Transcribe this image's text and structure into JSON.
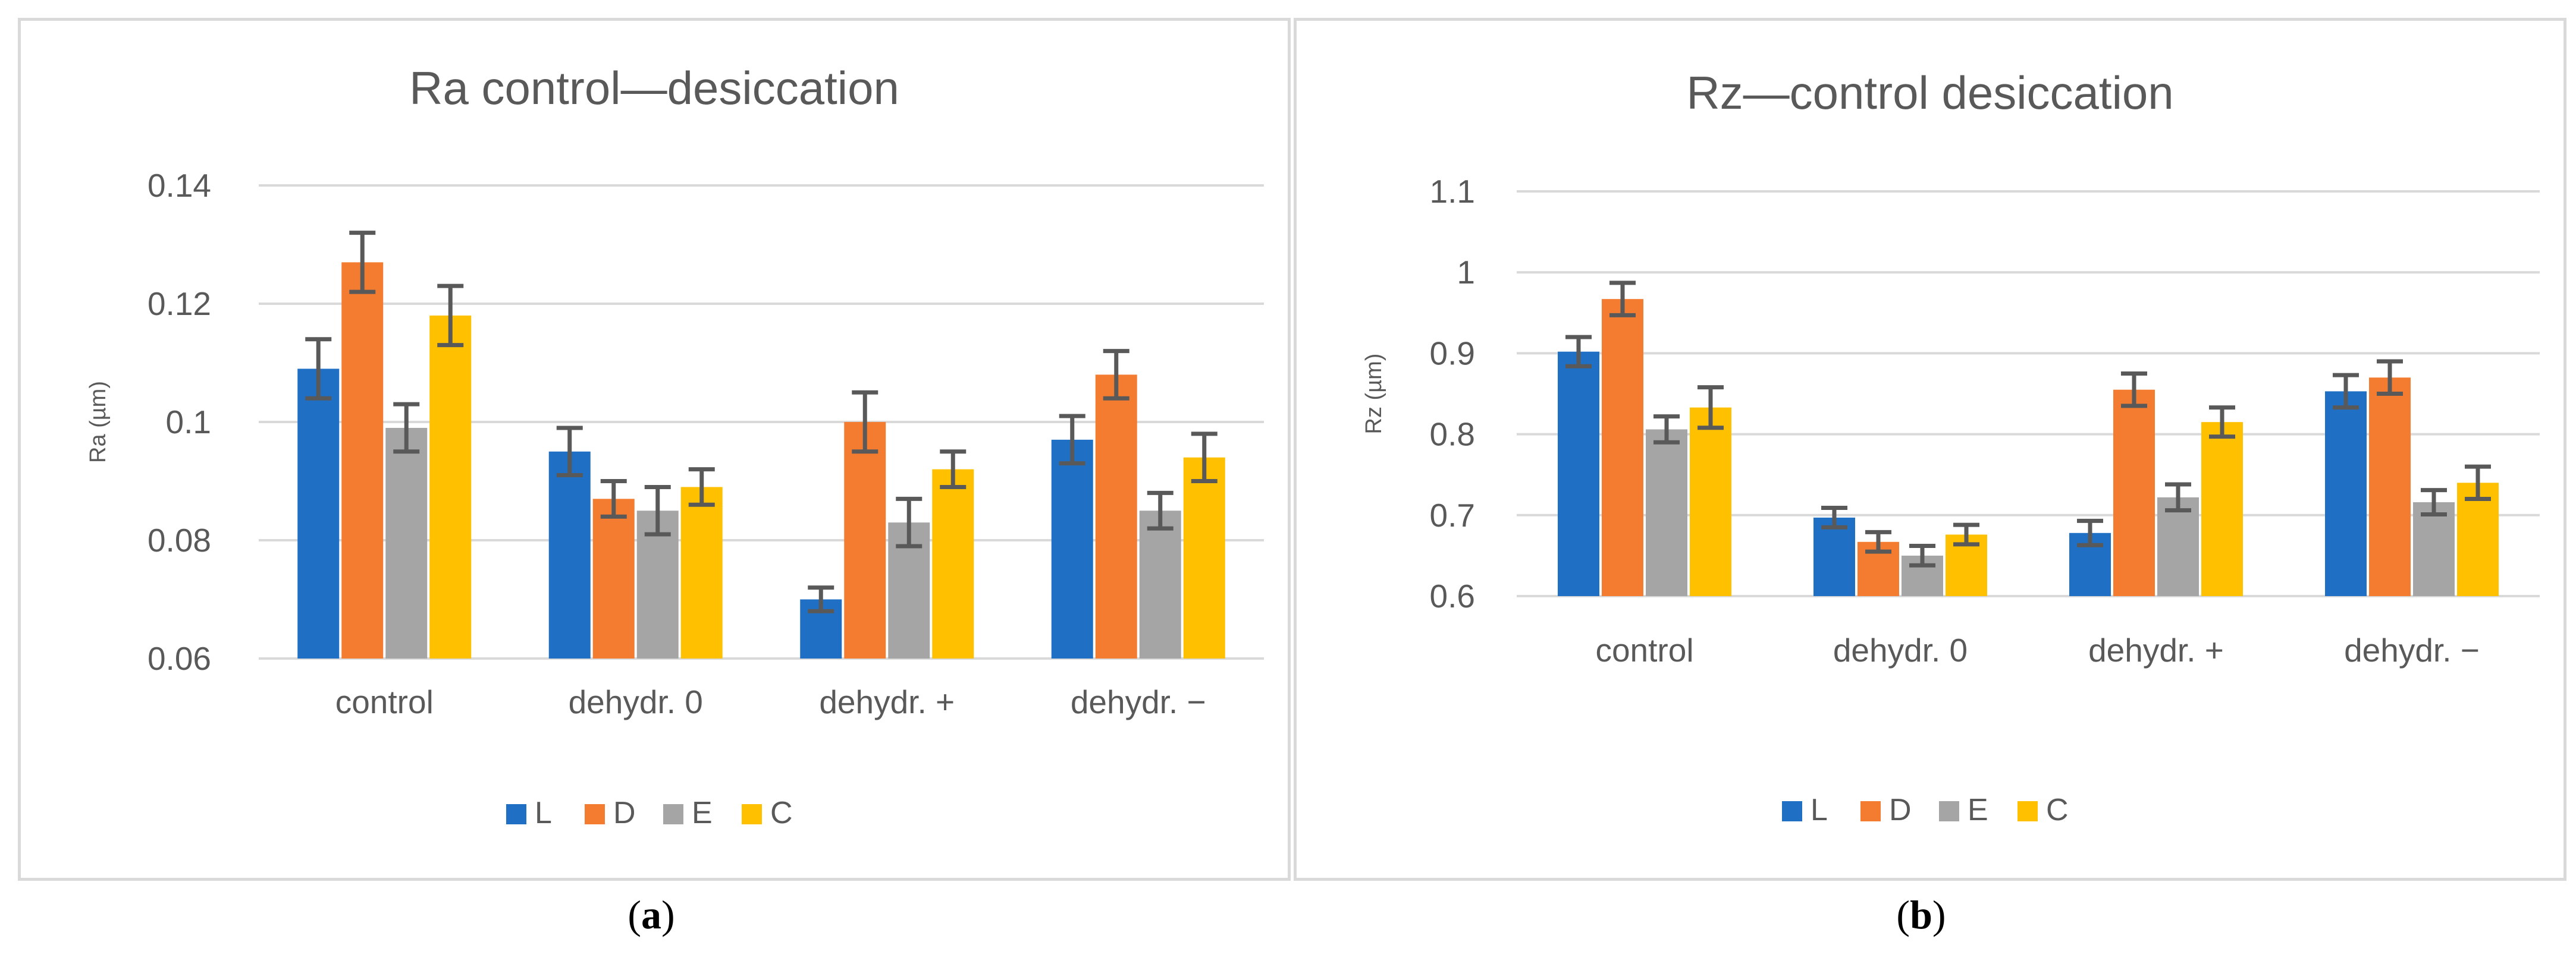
{
  "chart_data": [
    {
      "type": "bar",
      "title": "Ra control—desiccation",
      "xlabel": "",
      "ylabel": "Ra (µm)",
      "ylim": [
        0.06,
        0.14
      ],
      "yticks": [
        "0.06",
        "0.08",
        "0.1",
        "0.12",
        "0.14"
      ],
      "categories": [
        "control",
        "dehydr. 0",
        "dehydr. +",
        "dehydr. −"
      ],
      "series": [
        {
          "name": "L",
          "color": "#1f6fc5",
          "values": [
            0.109,
            0.095,
            0.07,
            0.097
          ],
          "errors": [
            0.005,
            0.004,
            0.002,
            0.004
          ]
        },
        {
          "name": "D",
          "color": "#f47c30",
          "values": [
            0.127,
            0.087,
            0.1,
            0.108
          ],
          "errors": [
            0.005,
            0.003,
            0.005,
            0.004
          ]
        },
        {
          "name": "E",
          "color": "#a5a5a5",
          "values": [
            0.099,
            0.085,
            0.083,
            0.085
          ],
          "errors": [
            0.004,
            0.004,
            0.004,
            0.003
          ]
        },
        {
          "name": "C",
          "color": "#ffc000",
          "values": [
            0.118,
            0.089,
            0.092,
            0.094
          ],
          "errors": [
            0.005,
            0.003,
            0.003,
            0.004
          ]
        }
      ],
      "legend": "bottom",
      "grid": true,
      "caption": {
        "open": "(",
        "letter": "a",
        "close": ")"
      }
    },
    {
      "type": "bar",
      "title": "Rz—control desiccation",
      "xlabel": "",
      "ylabel": "Rz (µm)",
      "ylim": [
        0.6,
        1.1
      ],
      "yticks": [
        "0.6",
        "0.7",
        "0.8",
        "0.9",
        "1",
        "1.1"
      ],
      "categories": [
        "control",
        "dehydr. 0",
        "dehydr. +",
        "dehydr. −"
      ],
      "series": [
        {
          "name": "L",
          "color": "#1f6fc5",
          "values": [
            0.902,
            0.697,
            0.678,
            0.853
          ],
          "errors": [
            0.018,
            0.012,
            0.015,
            0.02
          ]
        },
        {
          "name": "D",
          "color": "#f47c30",
          "values": [
            0.967,
            0.667,
            0.855,
            0.87
          ],
          "errors": [
            0.02,
            0.012,
            0.02,
            0.02
          ]
        },
        {
          "name": "E",
          "color": "#a5a5a5",
          "values": [
            0.806,
            0.65,
            0.722,
            0.716
          ],
          "errors": [
            0.016,
            0.012,
            0.016,
            0.015
          ]
        },
        {
          "name": "C",
          "color": "#ffc000",
          "values": [
            0.833,
            0.676,
            0.815,
            0.74
          ],
          "errors": [
            0.025,
            0.012,
            0.018,
            0.02
          ]
        }
      ],
      "legend": "bottom",
      "grid": true,
      "caption": {
        "open": "(",
        "letter": "b",
        "close": ")"
      }
    }
  ]
}
